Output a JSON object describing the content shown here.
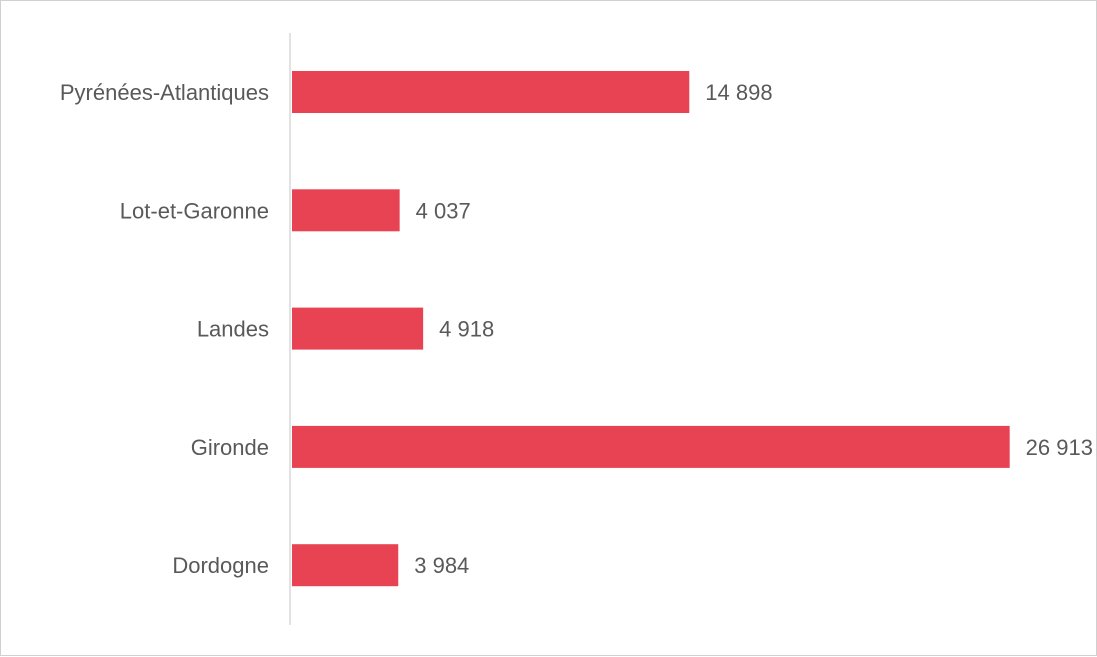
{
  "colors": {
    "bar": "#e84352",
    "axis": "#d9d9d9",
    "text": "#595959",
    "frame": "#d0d0d0"
  },
  "chart_data": {
    "type": "bar",
    "orientation": "horizontal",
    "categories": [
      "Pyrénées-Atlantiques",
      "Lot-et-Garonne",
      "Landes",
      "Gironde",
      "Dordogne"
    ],
    "values": [
      14898,
      4037,
      4918,
      26913,
      3984
    ],
    "value_labels": [
      "14 898",
      "4 037",
      "4 918",
      "26 913",
      "3 984"
    ],
    "title": "",
    "xlabel": "",
    "ylabel": "",
    "xlim": [
      0,
      27000
    ],
    "grid": false,
    "legend": "none"
  }
}
